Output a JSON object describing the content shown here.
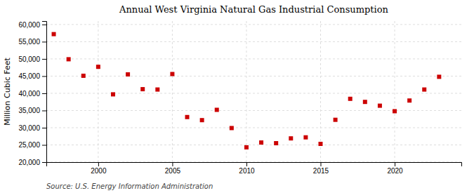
{
  "chart_data": {
    "type": "scatter",
    "title": "Annual West Virginia Natural Gas Industrial Consumption",
    "ylabel": "Million Cubic Feet",
    "annotations": [
      "Source: U.S. Energy Information Administration"
    ],
    "x": [
      1997,
      1998,
      1999,
      2000,
      2001,
      2002,
      2003,
      2004,
      2005,
      2006,
      2007,
      2008,
      2009,
      2010,
      2011,
      2012,
      2013,
      2014,
      2015,
      2016,
      2017,
      2018,
      2019,
      2020,
      2021,
      2022,
      2023
    ],
    "values": [
      57200,
      49900,
      45100,
      47700,
      39700,
      45500,
      41200,
      41100,
      45600,
      33100,
      32200,
      35200,
      29900,
      24300,
      25700,
      25500,
      26900,
      27200,
      25300,
      32300,
      38400,
      37500,
      36400,
      34800,
      37900,
      41100,
      44800
    ],
    "color": "#cc0000",
    "marker": "square",
    "grid": true,
    "xlim": [
      1996.5,
      2024.5
    ],
    "xticks": [
      2000,
      2005,
      2010,
      2015,
      2020
    ],
    "ylim": [
      20000,
      61000
    ],
    "yticks": [
      {
        "value": 20000,
        "label": "20,000"
      },
      {
        "value": 25000,
        "label": "25,000"
      },
      {
        "value": 30000,
        "label": "30,000"
      },
      {
        "value": 35000,
        "label": "35,000"
      },
      {
        "value": 40000,
        "label": "40,000"
      },
      {
        "value": 45000,
        "label": "45,000"
      },
      {
        "value": 50000,
        "label": "50,000"
      },
      {
        "value": 55000,
        "label": "55,000"
      },
      {
        "value": 60000,
        "label": "60,000"
      }
    ]
  }
}
